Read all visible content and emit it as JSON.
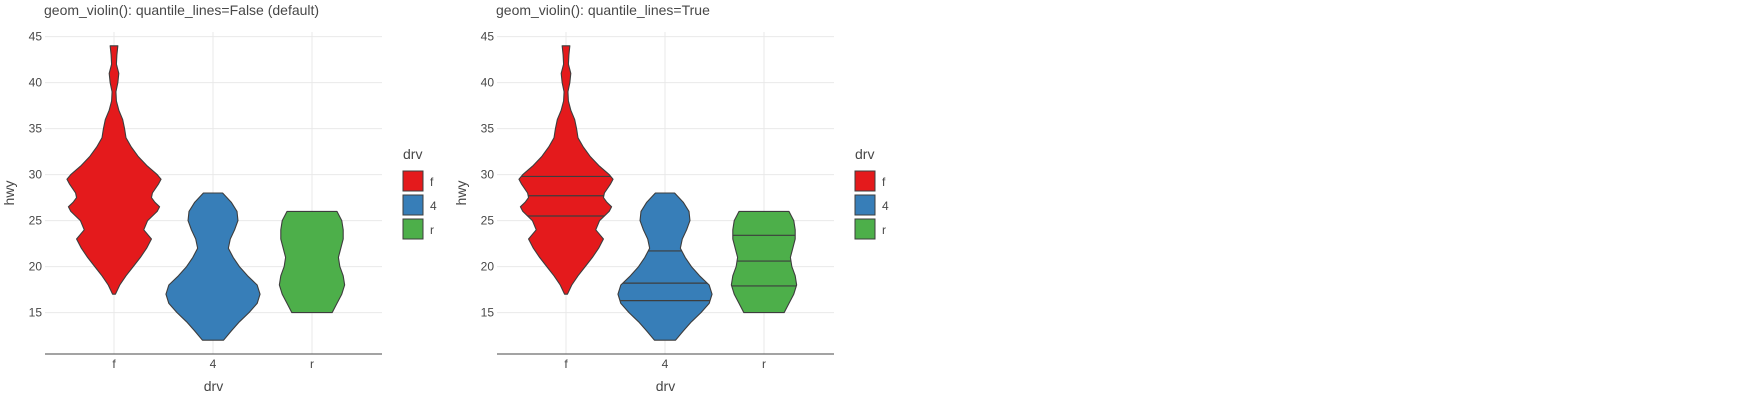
{
  "chart_data": [
    {
      "type": "violin",
      "title": "geom_violin(): quantile_lines=False (default)",
      "xlabel": "drv",
      "ylabel": "hwy",
      "categories": [
        "f",
        "4",
        "r"
      ],
      "yticks": [
        15,
        20,
        25,
        30,
        35,
        40,
        45
      ],
      "ylim": [
        10.5,
        45.5
      ],
      "quantile_lines": false,
      "series": [
        {
          "name": "f",
          "color": "#e41a1c",
          "min": 17,
          "max": 44,
          "profile": [
            [
              17,
              0.03
            ],
            [
              18,
              0.12
            ],
            [
              19,
              0.25
            ],
            [
              20,
              0.4
            ],
            [
              21,
              0.55
            ],
            [
              22,
              0.68
            ],
            [
              23,
              0.78
            ],
            [
              24,
              0.62
            ],
            [
              25,
              0.7
            ],
            [
              26,
              0.9
            ],
            [
              26.5,
              0.95
            ],
            [
              27,
              0.85
            ],
            [
              27.5,
              0.78
            ],
            [
              28,
              0.8
            ],
            [
              29,
              0.93
            ],
            [
              29.5,
              0.98
            ],
            [
              30,
              0.9
            ],
            [
              31,
              0.68
            ],
            [
              32,
              0.5
            ],
            [
              33,
              0.36
            ],
            [
              34,
              0.25
            ],
            [
              35,
              0.22
            ],
            [
              36,
              0.18
            ],
            [
              37,
              0.1
            ],
            [
              38,
              0.05
            ],
            [
              39,
              0.04
            ],
            [
              40,
              0.08
            ],
            [
              41,
              0.1
            ],
            [
              42,
              0.05
            ],
            [
              43,
              0.06
            ],
            [
              44,
              0.08
            ]
          ]
        },
        {
          "name": "4",
          "color": "#377eb8",
          "min": 12,
          "max": 28,
          "profile": [
            [
              12,
              0.22
            ],
            [
              13,
              0.38
            ],
            [
              14,
              0.55
            ],
            [
              15,
              0.75
            ],
            [
              16,
              0.92
            ],
            [
              17,
              0.98
            ],
            [
              18,
              0.92
            ],
            [
              19,
              0.72
            ],
            [
              20,
              0.55
            ],
            [
              21,
              0.42
            ],
            [
              22,
              0.32
            ],
            [
              23,
              0.36
            ],
            [
              24,
              0.45
            ],
            [
              25,
              0.52
            ],
            [
              26,
              0.5
            ],
            [
              27,
              0.38
            ],
            [
              28,
              0.2
            ]
          ]
        },
        {
          "name": "r",
          "color": "#4daf4a",
          "min": 15,
          "max": 26,
          "profile": [
            [
              15,
              0.42
            ],
            [
              16,
              0.52
            ],
            [
              17,
              0.62
            ],
            [
              18,
              0.68
            ],
            [
              19,
              0.65
            ],
            [
              20,
              0.58
            ],
            [
              21,
              0.55
            ],
            [
              22,
              0.6
            ],
            [
              23,
              0.65
            ],
            [
              24,
              0.65
            ],
            [
              25,
              0.62
            ],
            [
              26,
              0.52
            ]
          ]
        }
      ],
      "legend": {
        "title": "drv",
        "entries": [
          "f",
          "4",
          "r"
        ]
      }
    },
    {
      "type": "violin",
      "title": "geom_violin(): quantile_lines=True",
      "xlabel": "drv",
      "ylabel": "hwy",
      "categories": [
        "f",
        "4",
        "r"
      ],
      "yticks": [
        15,
        20,
        25,
        30,
        35,
        40,
        45
      ],
      "ylim": [
        10.5,
        45.5
      ],
      "quantile_lines": true,
      "series": [
        {
          "name": "f",
          "color": "#e41a1c",
          "min": 17,
          "max": 44,
          "quantiles": [
            25.5,
            27.7,
            29.8
          ],
          "profile": [
            [
              17,
              0.03
            ],
            [
              18,
              0.12
            ],
            [
              19,
              0.25
            ],
            [
              20,
              0.4
            ],
            [
              21,
              0.55
            ],
            [
              22,
              0.68
            ],
            [
              23,
              0.78
            ],
            [
              24,
              0.62
            ],
            [
              25,
              0.7
            ],
            [
              26,
              0.9
            ],
            [
              26.5,
              0.95
            ],
            [
              27,
              0.85
            ],
            [
              27.5,
              0.78
            ],
            [
              28,
              0.8
            ],
            [
              29,
              0.93
            ],
            [
              29.5,
              0.98
            ],
            [
              30,
              0.9
            ],
            [
              31,
              0.68
            ],
            [
              32,
              0.5
            ],
            [
              33,
              0.36
            ],
            [
              34,
              0.25
            ],
            [
              35,
              0.22
            ],
            [
              36,
              0.18
            ],
            [
              37,
              0.1
            ],
            [
              38,
              0.05
            ],
            [
              39,
              0.04
            ],
            [
              40,
              0.08
            ],
            [
              41,
              0.1
            ],
            [
              42,
              0.05
            ],
            [
              43,
              0.06
            ],
            [
              44,
              0.08
            ]
          ]
        },
        {
          "name": "4",
          "color": "#377eb8",
          "min": 12,
          "max": 28,
          "quantiles": [
            16.3,
            18.2,
            21.7
          ],
          "profile": [
            [
              12,
              0.22
            ],
            [
              13,
              0.38
            ],
            [
              14,
              0.55
            ],
            [
              15,
              0.75
            ],
            [
              16,
              0.92
            ],
            [
              17,
              0.98
            ],
            [
              18,
              0.92
            ],
            [
              19,
              0.72
            ],
            [
              20,
              0.55
            ],
            [
              21,
              0.42
            ],
            [
              22,
              0.32
            ],
            [
              23,
              0.36
            ],
            [
              24,
              0.45
            ],
            [
              25,
              0.52
            ],
            [
              26,
              0.5
            ],
            [
              27,
              0.38
            ],
            [
              28,
              0.2
            ]
          ]
        },
        {
          "name": "r",
          "color": "#4daf4a",
          "min": 15,
          "max": 26,
          "quantiles": [
            17.9,
            20.6,
            23.4
          ],
          "profile": [
            [
              15,
              0.42
            ],
            [
              16,
              0.52
            ],
            [
              17,
              0.62
            ],
            [
              18,
              0.68
            ],
            [
              19,
              0.65
            ],
            [
              20,
              0.58
            ],
            [
              21,
              0.55
            ],
            [
              22,
              0.6
            ],
            [
              23,
              0.65
            ],
            [
              24,
              0.65
            ],
            [
              25,
              0.62
            ],
            [
              26,
              0.52
            ]
          ]
        }
      ],
      "legend": {
        "title": "drv",
        "entries": [
          "f",
          "4",
          "r"
        ]
      }
    }
  ]
}
